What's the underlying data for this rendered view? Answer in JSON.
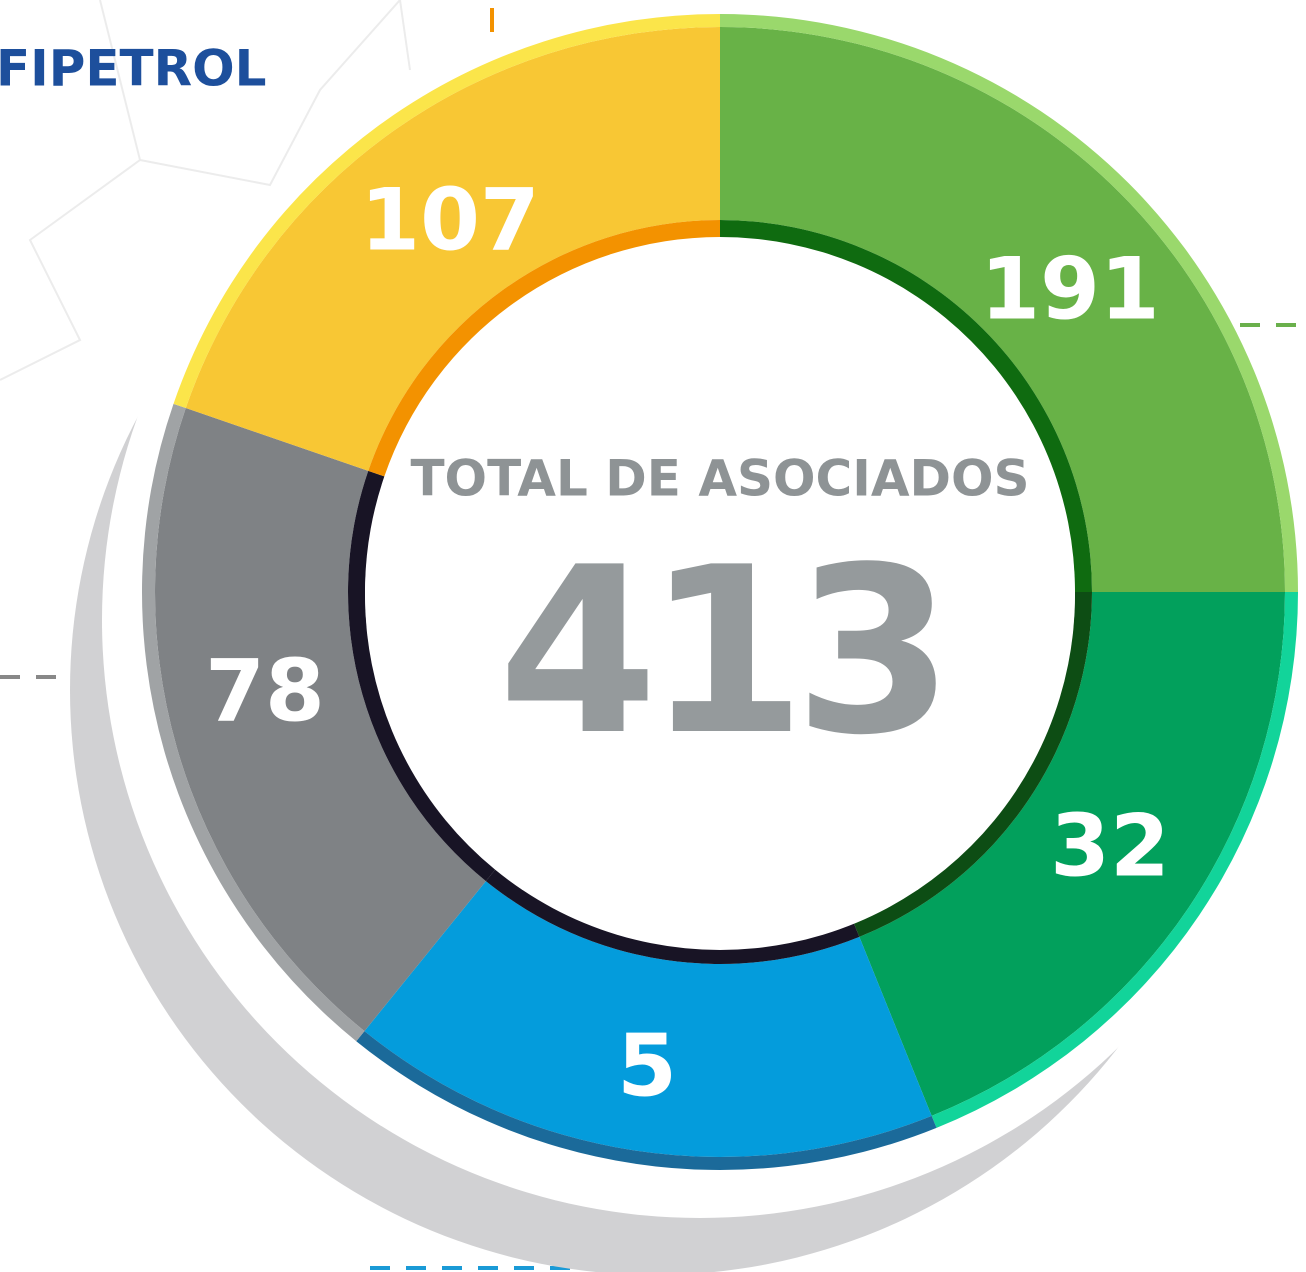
{
  "logo": "FIPETROL",
  "center": {
    "title": "TOTAL DE ASOCIADOS",
    "total": 413
  },
  "segments": [
    {
      "label": 191
    },
    {
      "label": 32
    },
    {
      "label": 5
    },
    {
      "label": 78
    },
    {
      "label": 107
    }
  ]
}
